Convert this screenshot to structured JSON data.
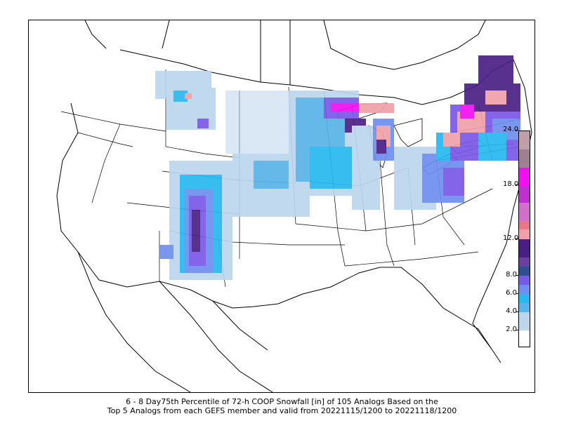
{
  "caption": {
    "line1": "6 - 8 Day75th Percentile of 72-h COOP Snowfall [in] of 105 Analogs Based on the",
    "line2": "Top 5 Analogs from each GEFS member and valid from 20221115/1200 to 20221118/1200"
  },
  "colorbar": {
    "unit": "in",
    "ticks": [
      "2.0",
      "4.0",
      "6.0",
      "8.0",
      "12.0",
      "18.0",
      "24.0"
    ],
    "segments": [
      {
        "color": "#ffffff"
      },
      {
        "color": "#bcd6ee"
      },
      {
        "color": "#58b4e8"
      },
      {
        "color": "#27b8ee"
      },
      {
        "color": "#6e8ef0"
      },
      {
        "color": "#7a58e8"
      },
      {
        "color": "#2f4f8f"
      },
      {
        "color": "#6b3fa0"
      },
      {
        "color": "#4a1f84"
      },
      {
        "color": "#f0a0a8"
      },
      {
        "color": "#e87888"
      },
      {
        "color": "#d070c8"
      },
      {
        "color": "#c030d0"
      },
      {
        "color": "#f010f0"
      },
      {
        "color": "#a08090"
      },
      {
        "color": "#c0a0a8"
      },
      {
        "color": "#f2e0dc"
      }
    ]
  },
  "colors": {
    "light_blue": "#bcd6ee",
    "cyan": "#27b8ee",
    "blue": "#6e8ef0",
    "purple": "#7a58e8",
    "dark_purple": "#4a1f84",
    "pink": "#f0a0a8",
    "magenta": "#f010f0"
  }
}
